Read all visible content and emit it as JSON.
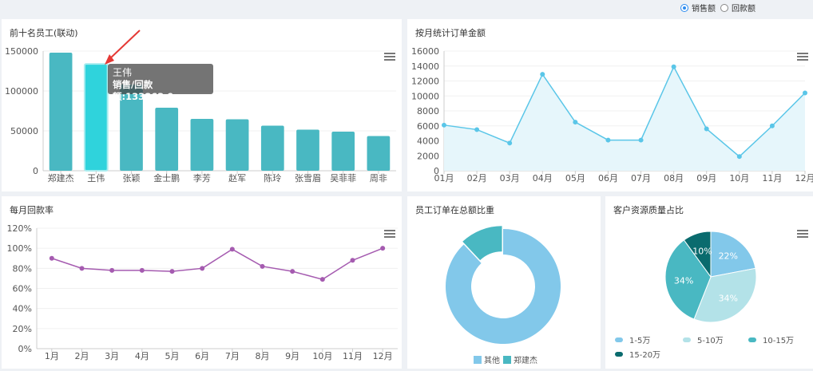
{
  "radio": {
    "options": [
      "销售额",
      "回款额"
    ],
    "selected": 0
  },
  "colors": {
    "teal": "#49b8c2",
    "teal_highlight": "#2fd3dc",
    "blue_line": "#5ac6e8",
    "purple": "#a55bb0",
    "donut_main": "#82c8ea",
    "donut_minor": "#49b8c2",
    "pie": [
      "#82c8ea",
      "#b3e2e8",
      "#49b8c2",
      "#0a6b6e"
    ]
  },
  "panels": {
    "top_employees": {
      "title": "前十名员工(联动)",
      "tooltip": {
        "name": "王伟",
        "label": "销售/回款额:",
        "value": "133863.9"
      }
    },
    "monthly_orders": {
      "title": "按月统计订单金额"
    },
    "monthly_return": {
      "title": "每月回款率"
    },
    "employee_share": {
      "title": "员工订单在总额比重"
    },
    "customer_quality": {
      "title": "客户资源质量占比"
    }
  },
  "chart_data": [
    {
      "type": "bar",
      "categories": [
        "郑建杰",
        "王伟",
        "张颖",
        "金士鹏",
        "李芳",
        "赵军",
        "陈玲",
        "张雪眉",
        "吴菲菲",
        "周非"
      ],
      "values": [
        148000,
        133863.9,
        108000,
        79000,
        65000,
        64500,
        56500,
        51500,
        49000,
        43500
      ],
      "highlight_index": 1,
      "yticks": [
        "0",
        "50000",
        "100000",
        "150000"
      ],
      "ylim": [
        0,
        150000
      ]
    },
    {
      "type": "area",
      "categories": [
        "01月",
        "02月",
        "03月",
        "04月",
        "05月",
        "06月",
        "07月",
        "08月",
        "09月",
        "10月",
        "11月",
        "12月"
      ],
      "values": [
        6100,
        5500,
        3700,
        12900,
        6500,
        4100,
        4100,
        13900,
        5600,
        1900,
        6000,
        10400
      ],
      "yticks": [
        "0",
        "2000",
        "4000",
        "6000",
        "8000",
        "10000",
        "12000",
        "14000",
        "16000"
      ],
      "ylim": [
        0,
        16000
      ]
    },
    {
      "type": "line",
      "categories": [
        "1月",
        "2月",
        "3月",
        "4月",
        "5月",
        "6月",
        "7月",
        "8月",
        "9月",
        "10月",
        "11月",
        "12月"
      ],
      "values": [
        90,
        80,
        78,
        78,
        77,
        80,
        99,
        82,
        77,
        69,
        88,
        100
      ],
      "yticks": [
        "0%",
        "20%",
        "40%",
        "60%",
        "80%",
        "100%",
        "120%"
      ],
      "ylim": [
        0,
        120
      ]
    },
    {
      "type": "pie",
      "variant": "donut",
      "slices": [
        {
          "name": "其他",
          "value": 88
        },
        {
          "name": "郑建杰",
          "value": 12
        }
      ]
    },
    {
      "type": "pie",
      "slices": [
        {
          "name": "1-5万",
          "value": 22,
          "label": "22%"
        },
        {
          "name": "5-10万",
          "value": 34,
          "label": "34%"
        },
        {
          "name": "10-15万",
          "value": 34,
          "label": "34%"
        },
        {
          "name": "15-20万",
          "value": 10,
          "label": "10%"
        }
      ]
    }
  ]
}
